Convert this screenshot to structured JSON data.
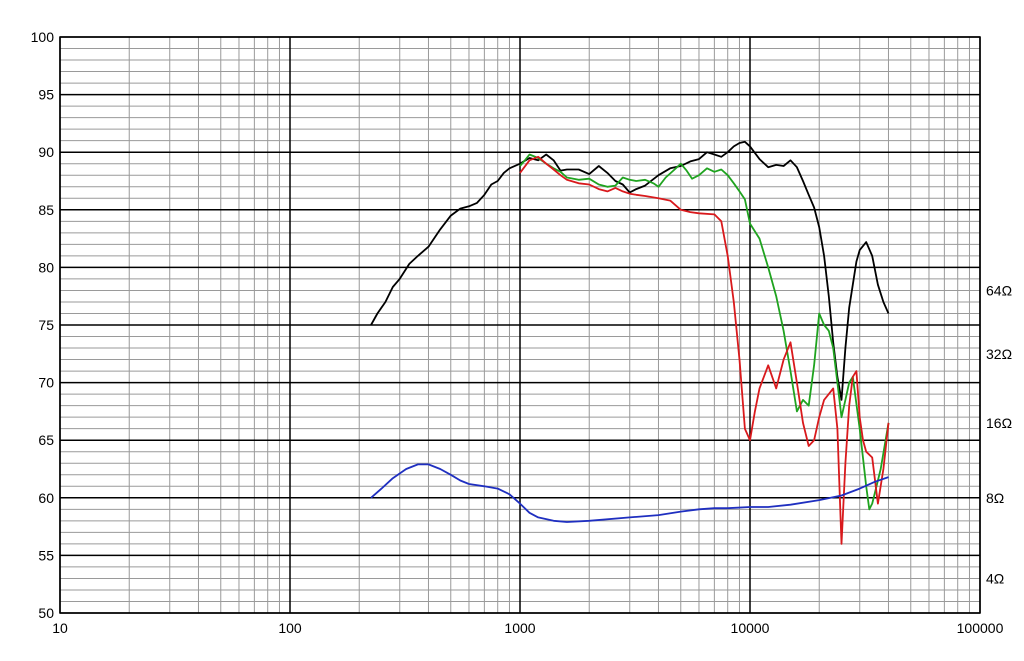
{
  "chart_data": {
    "type": "line",
    "title": "",
    "xlabel": "",
    "ylabel": "",
    "x_scale": "log",
    "xlim": [
      10,
      100000
    ],
    "ylim": [
      50,
      100
    ],
    "grid": true,
    "x_tick_labels": [
      "10",
      "100",
      "1000",
      "10000",
      "100000"
    ],
    "x_tick_values": [
      10,
      100,
      1000,
      10000,
      100000
    ],
    "y_tick_labels": [
      "50",
      "55",
      "60",
      "65",
      "70",
      "75",
      "80",
      "85",
      "90",
      "95",
      "100"
    ],
    "y_tick_values": [
      50,
      55,
      60,
      65,
      70,
      75,
      80,
      85,
      90,
      95,
      100
    ],
    "right_axis_labels": [
      {
        "text": "64Ω",
        "y": 78
      },
      {
        "text": "32Ω",
        "y": 72.5
      },
      {
        "text": "16Ω",
        "y": 66.5
      },
      {
        "text": "8Ω",
        "y": 60
      },
      {
        "text": "4Ω",
        "y": 53
      }
    ],
    "series": [
      {
        "color": "#000000",
        "points": [
          [
            225,
            75.0
          ],
          [
            240,
            76.0
          ],
          [
            260,
            77.0
          ],
          [
            280,
            78.3
          ],
          [
            300,
            79.0
          ],
          [
            330,
            80.3
          ],
          [
            360,
            81.0
          ],
          [
            400,
            81.8
          ],
          [
            450,
            83.3
          ],
          [
            500,
            84.5
          ],
          [
            550,
            85.1
          ],
          [
            600,
            85.3
          ],
          [
            650,
            85.6
          ],
          [
            700,
            86.3
          ],
          [
            750,
            87.2
          ],
          [
            800,
            87.5
          ],
          [
            850,
            88.2
          ],
          [
            900,
            88.6
          ],
          [
            1000,
            89.0
          ],
          [
            1100,
            89.5
          ],
          [
            1200,
            89.3
          ],
          [
            1300,
            89.8
          ],
          [
            1400,
            89.3
          ],
          [
            1500,
            88.4
          ],
          [
            1600,
            88.5
          ],
          [
            1800,
            88.5
          ],
          [
            2000,
            88.1
          ],
          [
            2200,
            88.8
          ],
          [
            2400,
            88.2
          ],
          [
            2600,
            87.5
          ],
          [
            2800,
            87.2
          ],
          [
            3000,
            86.5
          ],
          [
            3200,
            86.8
          ],
          [
            3500,
            87.1
          ],
          [
            4000,
            88.0
          ],
          [
            4500,
            88.6
          ],
          [
            5000,
            88.8
          ],
          [
            5500,
            89.2
          ],
          [
            6000,
            89.4
          ],
          [
            6500,
            90.0
          ],
          [
            7000,
            89.8
          ],
          [
            7500,
            89.6
          ],
          [
            8000,
            90.0
          ],
          [
            8500,
            90.5
          ],
          [
            9000,
            90.8
          ],
          [
            9500,
            90.9
          ],
          [
            10000,
            90.5
          ],
          [
            11000,
            89.4
          ],
          [
            12000,
            88.7
          ],
          [
            13000,
            88.9
          ],
          [
            14000,
            88.8
          ],
          [
            15000,
            89.3
          ],
          [
            16000,
            88.7
          ],
          [
            17000,
            87.5
          ],
          [
            18000,
            86.3
          ],
          [
            19000,
            85.2
          ],
          [
            20000,
            83.5
          ],
          [
            21000,
            81.0
          ],
          [
            22000,
            77.5
          ],
          [
            23000,
            73.5
          ],
          [
            24000,
            70.5
          ],
          [
            25000,
            68.5
          ],
          [
            26000,
            73.0
          ],
          [
            27000,
            76.5
          ],
          [
            28000,
            78.5
          ],
          [
            29000,
            80.5
          ],
          [
            30000,
            81.5
          ],
          [
            32000,
            82.2
          ],
          [
            34000,
            81.0
          ],
          [
            36000,
            78.5
          ],
          [
            38000,
            77.0
          ],
          [
            40000,
            76.0
          ]
        ]
      },
      {
        "color": "#1fa31f",
        "points": [
          [
            1000,
            88.8
          ],
          [
            1050,
            89.3
          ],
          [
            1100,
            89.8
          ],
          [
            1200,
            89.5
          ],
          [
            1300,
            89.0
          ],
          [
            1400,
            88.6
          ],
          [
            1500,
            88.3
          ],
          [
            1600,
            87.8
          ],
          [
            1800,
            87.6
          ],
          [
            2000,
            87.7
          ],
          [
            2200,
            87.2
          ],
          [
            2400,
            87.0
          ],
          [
            2600,
            87.1
          ],
          [
            2800,
            87.8
          ],
          [
            3000,
            87.6
          ],
          [
            3200,
            87.5
          ],
          [
            3500,
            87.6
          ],
          [
            3800,
            87.3
          ],
          [
            4000,
            87.0
          ],
          [
            4300,
            87.8
          ],
          [
            4700,
            88.5
          ],
          [
            5000,
            89.0
          ],
          [
            5300,
            88.4
          ],
          [
            5600,
            87.7
          ],
          [
            6000,
            88.0
          ],
          [
            6500,
            88.6
          ],
          [
            7000,
            88.3
          ],
          [
            7500,
            88.5
          ],
          [
            8000,
            88.0
          ],
          [
            8500,
            87.3
          ],
          [
            9000,
            86.6
          ],
          [
            9500,
            85.9
          ],
          [
            10000,
            83.8
          ],
          [
            11000,
            82.5
          ],
          [
            12000,
            80.0
          ],
          [
            13000,
            77.5
          ],
          [
            14000,
            74.5
          ],
          [
            15000,
            71.0
          ],
          [
            16000,
            67.5
          ],
          [
            17000,
            68.5
          ],
          [
            18000,
            68.0
          ],
          [
            19000,
            71.5
          ],
          [
            20000,
            76.0
          ],
          [
            21000,
            75.0
          ],
          [
            22000,
            74.5
          ],
          [
            23000,
            73.0
          ],
          [
            24000,
            70.0
          ],
          [
            25000,
            67.0
          ],
          [
            26000,
            68.5
          ],
          [
            27000,
            70.0
          ],
          [
            28000,
            70.5
          ],
          [
            30000,
            66.0
          ],
          [
            32000,
            61.0
          ],
          [
            33000,
            59.0
          ],
          [
            34000,
            59.5
          ],
          [
            35000,
            60.5
          ],
          [
            37000,
            62.5
          ],
          [
            40000,
            66.5
          ]
        ]
      },
      {
        "color": "#d9191c",
        "points": [
          [
            1000,
            88.2
          ],
          [
            1100,
            89.3
          ],
          [
            1200,
            89.6
          ],
          [
            1300,
            89.0
          ],
          [
            1400,
            88.5
          ],
          [
            1500,
            88.0
          ],
          [
            1600,
            87.6
          ],
          [
            1800,
            87.3
          ],
          [
            2000,
            87.2
          ],
          [
            2200,
            86.8
          ],
          [
            2400,
            86.6
          ],
          [
            2600,
            86.9
          ],
          [
            2800,
            86.6
          ],
          [
            3000,
            86.4
          ],
          [
            3200,
            86.3
          ],
          [
            3500,
            86.2
          ],
          [
            4000,
            86.0
          ],
          [
            4500,
            85.8
          ],
          [
            5000,
            85.0
          ],
          [
            5500,
            84.8
          ],
          [
            6000,
            84.7
          ],
          [
            7000,
            84.6
          ],
          [
            7500,
            84.0
          ],
          [
            8000,
            81.0
          ],
          [
            8500,
            77.0
          ],
          [
            9000,
            72.0
          ],
          [
            9500,
            66.0
          ],
          [
            10000,
            65.0
          ],
          [
            10500,
            67.5
          ],
          [
            11000,
            69.5
          ],
          [
            12000,
            71.5
          ],
          [
            13000,
            69.5
          ],
          [
            14000,
            72.0
          ],
          [
            15000,
            73.5
          ],
          [
            16000,
            70.0
          ],
          [
            17000,
            66.5
          ],
          [
            18000,
            64.5
          ],
          [
            19000,
            65.0
          ],
          [
            20000,
            67.0
          ],
          [
            21000,
            68.5
          ],
          [
            22000,
            69.0
          ],
          [
            23000,
            69.5
          ],
          [
            24000,
            66.0
          ],
          [
            25000,
            56.0
          ],
          [
            26000,
            63.0
          ],
          [
            27000,
            68.0
          ],
          [
            28000,
            70.5
          ],
          [
            29000,
            71.0
          ],
          [
            30000,
            67.0
          ],
          [
            31000,
            65.0
          ],
          [
            32000,
            64.0
          ],
          [
            34000,
            63.5
          ],
          [
            36000,
            59.5
          ],
          [
            38000,
            62.5
          ],
          [
            40000,
            66.5
          ]
        ]
      },
      {
        "color": "#1f2fc0",
        "points": [
          [
            225,
            60.0
          ],
          [
            250,
            60.8
          ],
          [
            280,
            61.7
          ],
          [
            320,
            62.5
          ],
          [
            360,
            62.9
          ],
          [
            400,
            62.9
          ],
          [
            450,
            62.5
          ],
          [
            500,
            62.0
          ],
          [
            550,
            61.5
          ],
          [
            600,
            61.2
          ],
          [
            700,
            61.0
          ],
          [
            800,
            60.8
          ],
          [
            900,
            60.3
          ],
          [
            1000,
            59.5
          ],
          [
            1100,
            58.7
          ],
          [
            1200,
            58.3
          ],
          [
            1400,
            58.0
          ],
          [
            1600,
            57.9
          ],
          [
            2000,
            58.0
          ],
          [
            3000,
            58.3
          ],
          [
            4000,
            58.5
          ],
          [
            5000,
            58.8
          ],
          [
            6000,
            59.0
          ],
          [
            7000,
            59.1
          ],
          [
            8000,
            59.1
          ],
          [
            10000,
            59.2
          ],
          [
            12000,
            59.2
          ],
          [
            15000,
            59.4
          ],
          [
            20000,
            59.8
          ],
          [
            25000,
            60.2
          ],
          [
            30000,
            60.8
          ],
          [
            35000,
            61.4
          ],
          [
            40000,
            61.8
          ]
        ]
      }
    ]
  }
}
